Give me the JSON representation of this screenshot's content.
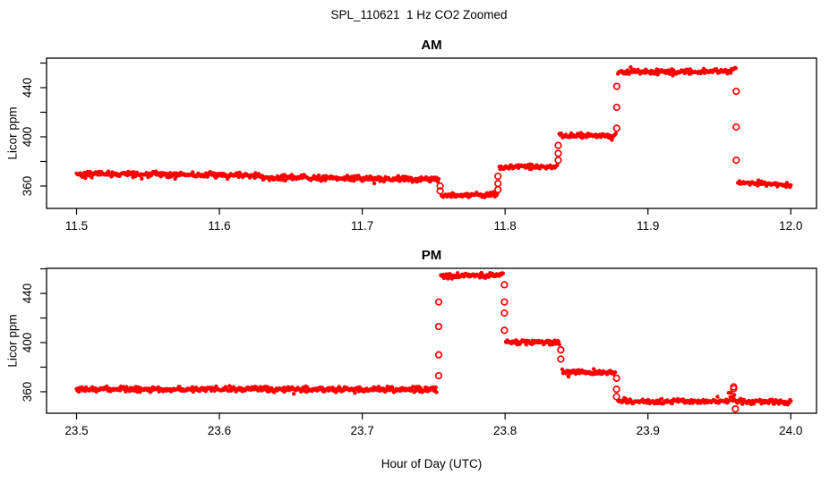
{
  "figure": {
    "title": "SPL_110621  1 Hz CO2 Zoomed",
    "xlabel": "Hour of Day (UTC)",
    "background": "#FFFFFF",
    "axis_color": "#000000"
  },
  "chart_data": [
    {
      "type": "scatter",
      "title": "AM",
      "ylabel": "Licor ppm",
      "point_color": "#FF0000",
      "marker": "filled-dot-with-open-circle-transitions",
      "grid": false,
      "xlim": [
        11.479,
        12.018
      ],
      "ylim": [
        341.8,
        464.0
      ],
      "xtick_values": [
        11.5,
        11.6,
        11.7,
        11.8,
        11.9,
        12.0
      ],
      "xtick_labels": [
        "11.5",
        "11.6",
        "11.7",
        "11.8",
        "11.9",
        "12.0"
      ],
      "ytick_major_values": [
        360,
        400,
        440
      ],
      "ytick_major_labels": [
        "360",
        "400",
        "440"
      ],
      "ytick_minor_values": [
        380,
        420,
        460
      ],
      "segments": [
        {
          "t0": 11.5,
          "t1": 11.628,
          "v0": 370.0,
          "v1": 368.5,
          "noise": 2.0
        },
        {
          "t0": 11.629,
          "t1": 11.7535,
          "v0": 367.0,
          "v1": 365.5,
          "noise": 2.0
        },
        {
          "t0": 11.7555,
          "t1": 11.7945,
          "v0": 352.5,
          "v1": 353.0,
          "noise": 1.7
        },
        {
          "t0": 11.796,
          "t1": 11.8365,
          "v0": 375.5,
          "v1": 376.0,
          "noise": 1.7
        },
        {
          "t0": 11.838,
          "t1": 11.8775,
          "v0": 401.0,
          "v1": 401.0,
          "noise": 1.6
        },
        {
          "t0": 11.879,
          "t1": 11.9585,
          "v0": 452.5,
          "v1": 453.5,
          "noise": 1.8
        },
        {
          "t0": 11.9585,
          "t1": 11.9615,
          "v0": 455.0,
          "v1": 456.5,
          "noise": 1.5
        },
        {
          "t0": 11.963,
          "t1": 12.0,
          "v0": 363.0,
          "v1": 360.5,
          "noise": 1.5
        }
      ],
      "transitions": [
        {
          "t": 11.7545,
          "values": [
            360,
            356
          ]
        },
        {
          "t": 11.795,
          "values": [
            357,
            362,
            368
          ]
        },
        {
          "t": 11.8372,
          "values": [
            381,
            386.5,
            393
          ]
        },
        {
          "t": 11.8782,
          "values": [
            407,
            424,
            441
          ]
        },
        {
          "t": 11.9618,
          "values": [
            437,
            408,
            381
          ]
        }
      ]
    },
    {
      "type": "scatter",
      "title": "PM",
      "ylabel": "Licor ppm",
      "point_color": "#FF0000",
      "marker": "filled-dot-with-open-circle-transitions",
      "grid": false,
      "xlim": [
        23.479,
        24.018
      ],
      "ylim": [
        342.5,
        460.4
      ],
      "xtick_values": [
        23.5,
        23.6,
        23.7,
        23.8,
        23.9,
        24.0
      ],
      "xtick_labels": [
        "23.5",
        "23.6",
        "23.7",
        "23.8",
        "23.9",
        "24.0"
      ],
      "ytick_major_values": [
        360,
        400,
        440
      ],
      "ytick_major_labels": [
        "360",
        "400",
        "440"
      ],
      "ytick_minor_values": [
        380,
        420,
        460
      ],
      "segments": [
        {
          "t0": 23.5,
          "t1": 23.752,
          "v0": 362.0,
          "v1": 362.0,
          "noise": 1.9
        },
        {
          "t0": 23.755,
          "t1": 23.7985,
          "v0": 454.0,
          "v1": 455.0,
          "noise": 1.9
        },
        {
          "t0": 23.8005,
          "t1": 23.838,
          "v0": 400.5,
          "v1": 400.0,
          "noise": 1.7
        },
        {
          "t0": 23.84,
          "t1": 23.877,
          "v0": 376.5,
          "v1": 375.5,
          "noise": 1.7
        },
        {
          "t0": 23.879,
          "t1": 23.9565,
          "v0": 352.5,
          "v1": 352.0,
          "noise": 1.7
        },
        {
          "t0": 23.9565,
          "t1": 23.965,
          "v0": 357.0,
          "v1": 353.0,
          "noise": 3.0
        },
        {
          "t0": 23.965,
          "t1": 24.0,
          "v0": 352.0,
          "v1": 351.5,
          "noise": 1.7
        }
      ],
      "transitions": [
        {
          "t": 23.7535,
          "values": [
            373,
            390,
            413,
            433
          ]
        },
        {
          "t": 23.7995,
          "values": [
            447,
            433,
            424,
            410
          ]
        },
        {
          "t": 23.839,
          "values": [
            394,
            386.5
          ]
        },
        {
          "t": 23.878,
          "values": [
            371,
            362,
            356
          ]
        },
        {
          "t": 23.96,
          "values": [
            364,
            362.5
          ]
        },
        {
          "t": 23.9612,
          "values": [
            346
          ]
        }
      ]
    }
  ]
}
